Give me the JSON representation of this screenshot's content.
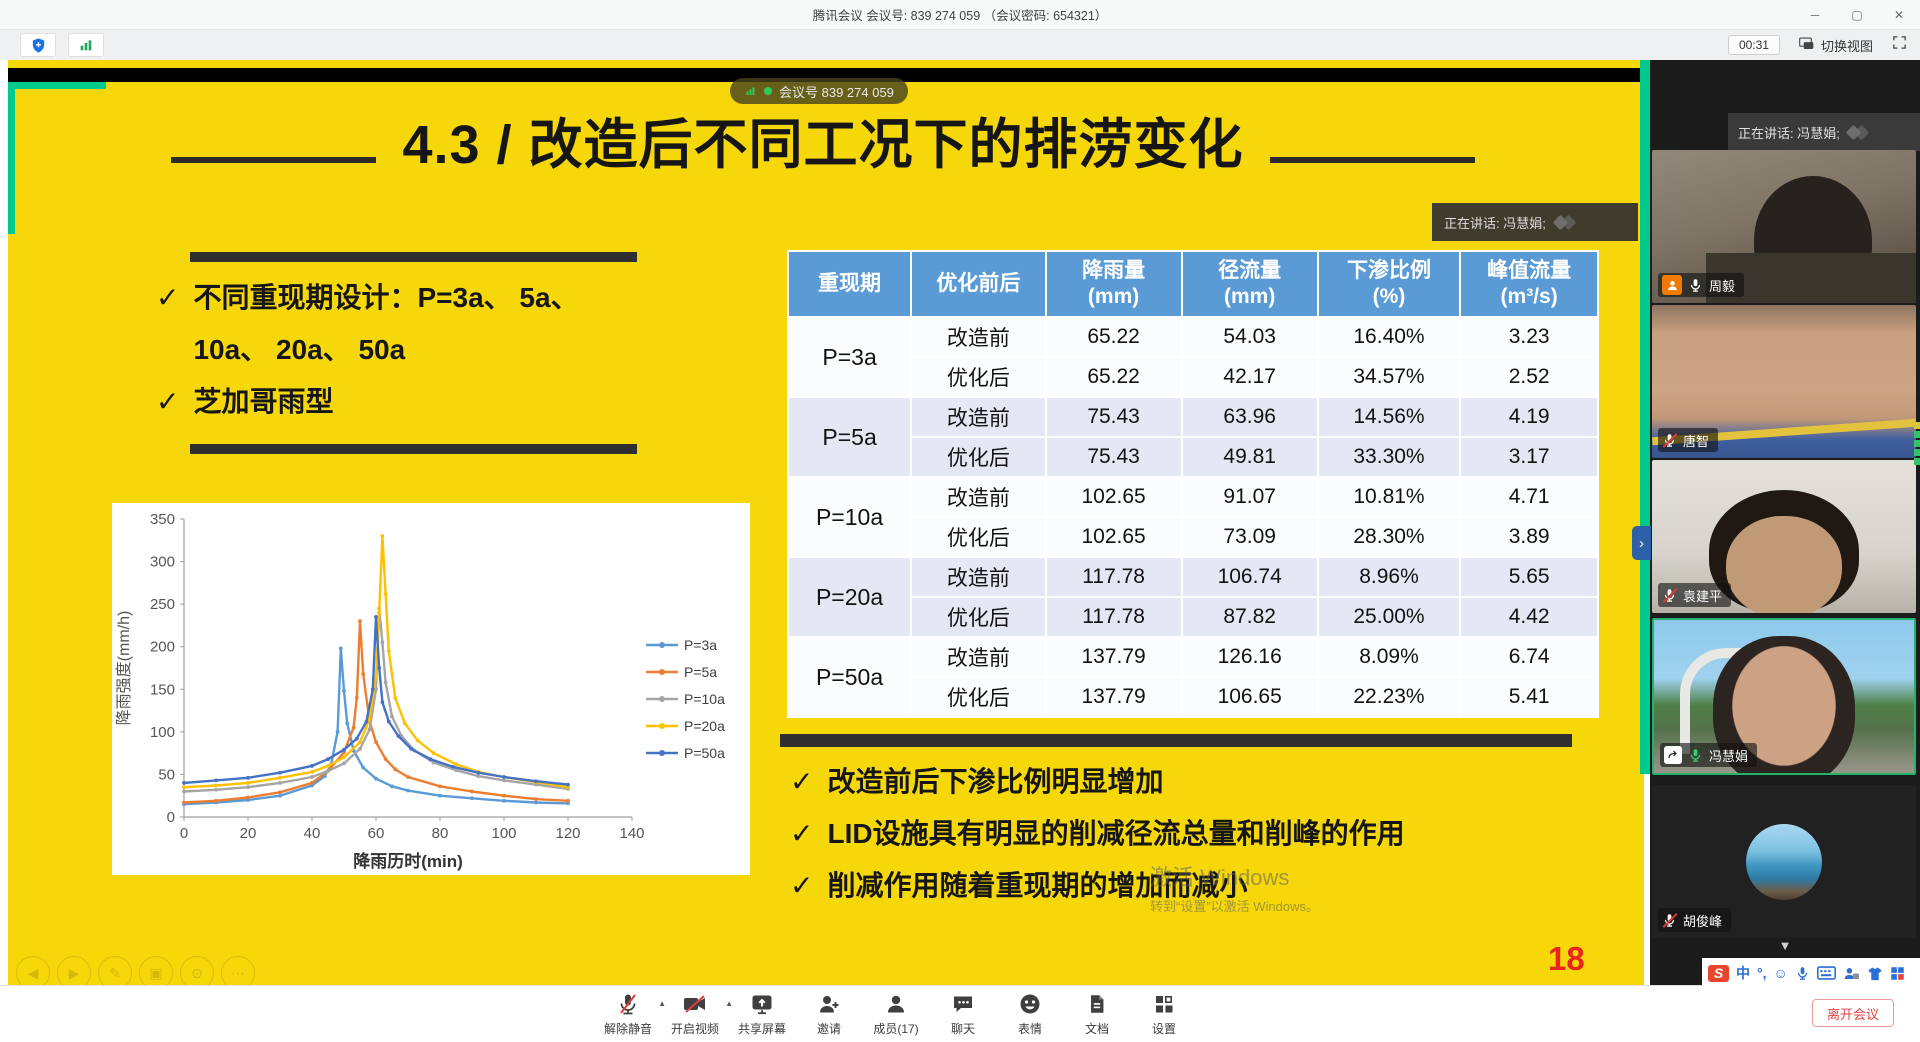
{
  "window": {
    "title": "腾讯会议 会议号: 839 274 059 （会议密码: 654321）",
    "controls": {
      "minimize": "─",
      "maximize": "▢",
      "close": "✕"
    }
  },
  "topbar": {
    "timer": "00:31",
    "switch_view_label": "切换视图"
  },
  "meeting_pill": {
    "label": "会议号 839 274 059"
  },
  "speaking_banner": {
    "text": "正在讲话: 冯慧娟;"
  },
  "slide": {
    "title": "4.3 / 改造后不同工况下的排涝变化",
    "page_number": "18",
    "left_bullets": [
      "不同重现期设计：P=3a、 5a、 10a、 20a、 50a",
      "芝加哥雨型"
    ],
    "bottom_bullets": [
      "改造前后下渗比例明显增加",
      "LID设施具有明显的削减径流总量和削峰的作用",
      "削减作用随着重现期的增加而减小"
    ],
    "watermark": {
      "line1": "激活 Windows",
      "line2": "转到“设置”以激活 Windows。"
    },
    "nav_controls": [
      "previous",
      "next",
      "pen",
      "ink-frame",
      "magnifier",
      "more"
    ],
    "colors": {
      "background": "#F6D70A",
      "accent_green": "#00C98D",
      "table_header": "#5B9BD5",
      "page_number_red": "#E8251A"
    }
  },
  "table": {
    "headers": [
      {
        "label": "重现期",
        "unit": ""
      },
      {
        "label": "优化前后",
        "unit": ""
      },
      {
        "label": "降雨量",
        "unit": "(mm)"
      },
      {
        "label": "径流量",
        "unit": "(mm)"
      },
      {
        "label": "下渗比例",
        "unit": "(%)"
      },
      {
        "label": "峰值流量",
        "unit": "(m³/s)"
      }
    ],
    "groups": [
      {
        "period": "P=3a",
        "rows": [
          [
            "改造前",
            "65.22",
            "54.03",
            "16.40%",
            "3.23"
          ],
          [
            "优化后",
            "65.22",
            "42.17",
            "34.57%",
            "2.52"
          ]
        ]
      },
      {
        "period": "P=5a",
        "rows": [
          [
            "改造前",
            "75.43",
            "63.96",
            "14.56%",
            "4.19"
          ],
          [
            "优化后",
            "75.43",
            "49.81",
            "33.30%",
            "3.17"
          ]
        ]
      },
      {
        "period": "P=10a",
        "rows": [
          [
            "改造前",
            "102.65",
            "91.07",
            "10.81%",
            "4.71"
          ],
          [
            "优化后",
            "102.65",
            "73.09",
            "28.30%",
            "3.89"
          ]
        ]
      },
      {
        "period": "P=20a",
        "rows": [
          [
            "改造前",
            "117.78",
            "106.74",
            "8.96%",
            "5.65"
          ],
          [
            "优化后",
            "117.78",
            "87.82",
            "25.00%",
            "4.42"
          ]
        ]
      },
      {
        "period": "P=50a",
        "rows": [
          [
            "改造前",
            "137.79",
            "126.16",
            "8.09%",
            "6.74"
          ],
          [
            "优化后",
            "137.79",
            "106.65",
            "22.23%",
            "5.41"
          ]
        ]
      }
    ]
  },
  "chart_data": {
    "type": "line",
    "title": "",
    "xlabel": "降雨历时(min)",
    "ylabel": "降雨强度(mm/h)",
    "xlim": [
      0,
      140
    ],
    "ylim": [
      0,
      350
    ],
    "xticks": [
      0,
      20,
      40,
      60,
      80,
      100,
      120,
      140
    ],
    "yticks": [
      0,
      50,
      100,
      150,
      200,
      250,
      300,
      350
    ],
    "grid": false,
    "legend_position": "right",
    "series": [
      {
        "name": "P=3a",
        "color": "#5B9BD5",
        "points": [
          [
            0,
            15
          ],
          [
            10,
            17
          ],
          [
            20,
            20
          ],
          [
            30,
            25
          ],
          [
            40,
            37
          ],
          [
            44,
            48
          ],
          [
            46,
            62
          ],
          [
            48,
            100
          ],
          [
            49,
            198
          ],
          [
            50,
            148
          ],
          [
            51,
            110
          ],
          [
            53,
            78
          ],
          [
            56,
            58
          ],
          [
            60,
            45
          ],
          [
            65,
            36
          ],
          [
            70,
            31
          ],
          [
            80,
            25
          ],
          [
            90,
            22
          ],
          [
            100,
            19
          ],
          [
            110,
            17
          ],
          [
            120,
            16
          ]
        ]
      },
      {
        "name": "P=5a",
        "color": "#ED7D31",
        "points": [
          [
            0,
            17
          ],
          [
            10,
            19
          ],
          [
            20,
            23
          ],
          [
            30,
            29
          ],
          [
            40,
            40
          ],
          [
            45,
            54
          ],
          [
            50,
            76
          ],
          [
            53,
            105
          ],
          [
            54,
            140
          ],
          [
            55,
            230
          ],
          [
            56,
            168
          ],
          [
            58,
            112
          ],
          [
            60,
            88
          ],
          [
            63,
            68
          ],
          [
            66,
            56
          ],
          [
            70,
            47
          ],
          [
            80,
            36
          ],
          [
            90,
            30
          ],
          [
            100,
            25
          ],
          [
            110,
            21
          ],
          [
            120,
            19
          ]
        ]
      },
      {
        "name": "P=10a",
        "color": "#A5A5A5",
        "points": [
          [
            0,
            30
          ],
          [
            10,
            32
          ],
          [
            20,
            35
          ],
          [
            30,
            40
          ],
          [
            40,
            47
          ],
          [
            45,
            54
          ],
          [
            50,
            63
          ],
          [
            55,
            80
          ],
          [
            58,
            103
          ],
          [
            60,
            150
          ],
          [
            61,
            245
          ],
          [
            62,
            205
          ],
          [
            63,
            158
          ],
          [
            65,
            118
          ],
          [
            68,
            95
          ],
          [
            72,
            78
          ],
          [
            78,
            64
          ],
          [
            85,
            55
          ],
          [
            92,
            48
          ],
          [
            100,
            43
          ],
          [
            110,
            38
          ],
          [
            120,
            33
          ]
        ]
      },
      {
        "name": "P=20a",
        "color": "#FFC000",
        "points": [
          [
            0,
            35
          ],
          [
            10,
            37
          ],
          [
            20,
            40
          ],
          [
            30,
            46
          ],
          [
            40,
            53
          ],
          [
            45,
            60
          ],
          [
            50,
            70
          ],
          [
            55,
            88
          ],
          [
            58,
            115
          ],
          [
            60,
            165
          ],
          [
            61,
            240
          ],
          [
            62,
            330
          ],
          [
            63,
            262
          ],
          [
            64,
            195
          ],
          [
            66,
            140
          ],
          [
            69,
            110
          ],
          [
            73,
            90
          ],
          [
            78,
            75
          ],
          [
            85,
            62
          ],
          [
            92,
            53
          ],
          [
            100,
            47
          ],
          [
            110,
            41
          ],
          [
            120,
            35
          ]
        ]
      },
      {
        "name": "P=50a",
        "color": "#4472C4",
        "points": [
          [
            0,
            40
          ],
          [
            10,
            43
          ],
          [
            20,
            46
          ],
          [
            30,
            52
          ],
          [
            40,
            60
          ],
          [
            45,
            68
          ],
          [
            50,
            79
          ],
          [
            54,
            92
          ],
          [
            57,
            112
          ],
          [
            59,
            150
          ],
          [
            60,
            235
          ],
          [
            61,
            175
          ],
          [
            62,
            135
          ],
          [
            64,
            112
          ],
          [
            67,
            95
          ],
          [
            71,
            80
          ],
          [
            77,
            68
          ],
          [
            84,
            59
          ],
          [
            92,
            52
          ],
          [
            100,
            47
          ],
          [
            110,
            42
          ],
          [
            120,
            38
          ]
        ]
      }
    ]
  },
  "sidebar": {
    "participants": [
      {
        "name": "周毅",
        "mic": "on",
        "member_icon": true,
        "video": "room-gray"
      },
      {
        "name": "唐智",
        "mic": "muted",
        "video": "face-blue"
      },
      {
        "name": "袁建平",
        "mic": "muted",
        "video": "room-light"
      },
      {
        "name": "冯慧娟",
        "mic": "speaking",
        "sharing": true,
        "speaking": true,
        "video": "outdoor"
      },
      {
        "name": "胡俊峰",
        "mic": "muted",
        "avatar": true,
        "video": "dark-avatar"
      }
    ]
  },
  "toolbar": {
    "buttons": [
      {
        "icon": "mute",
        "label": "解除静音",
        "arrow": true
      },
      {
        "icon": "camera",
        "label": "开启视频",
        "arrow": true
      },
      {
        "icon": "share",
        "label": "共享屏幕"
      },
      {
        "icon": "invite",
        "label": "邀请"
      },
      {
        "icon": "members",
        "label": "成员(17)"
      },
      {
        "icon": "chat",
        "label": "聊天"
      },
      {
        "icon": "emoji",
        "label": "表情"
      },
      {
        "icon": "doc",
        "label": "文档"
      },
      {
        "icon": "settings",
        "label": "设置"
      }
    ],
    "leave_label": "离开会议"
  },
  "tray": {
    "icons": [
      {
        "name": "sogou-input",
        "glyph": "S"
      },
      {
        "name": "chinese-mode",
        "glyph": "中"
      },
      {
        "name": "punctuation-mode",
        "glyph": "°,"
      },
      {
        "name": "emoji-panel",
        "glyph": "☺"
      },
      {
        "name": "voice-input"
      },
      {
        "name": "soft-keyboard"
      },
      {
        "name": "user-lexicon"
      },
      {
        "name": "skin-center"
      },
      {
        "name": "toolbox"
      }
    ]
  }
}
